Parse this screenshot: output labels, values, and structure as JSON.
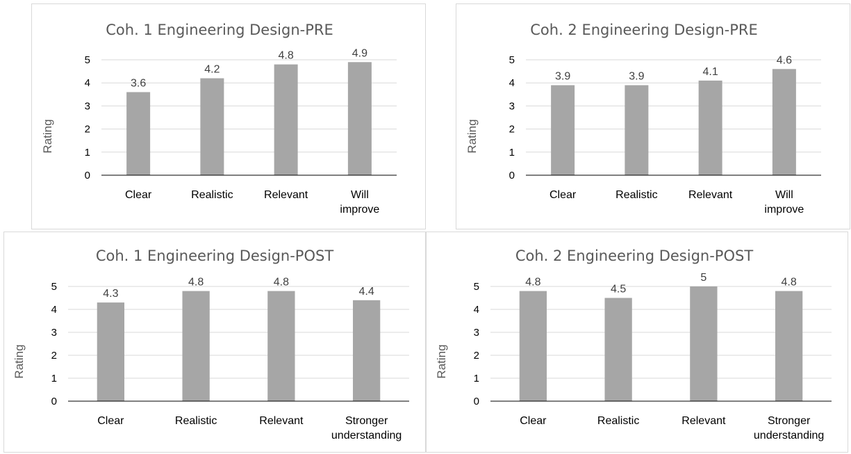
{
  "chart_data": [
    {
      "type": "bar",
      "title": "Coh. 1 Engineering Design-PRE",
      "ylabel": "Rating",
      "xlabel": "",
      "ylim": [
        0,
        5
      ],
      "yticks": [
        0,
        1,
        2,
        3,
        4,
        5
      ],
      "categories": [
        [
          "Clear"
        ],
        [
          "Realistic"
        ],
        [
          "Relevant"
        ],
        [
          "Will",
          "improve"
        ]
      ],
      "values": [
        3.6,
        4.2,
        4.8,
        4.9
      ],
      "value_labels": [
        "3.6",
        "4.2",
        "4.8",
        "4.9"
      ],
      "bar_color": "#a6a6a6",
      "grid": true,
      "legend": "none"
    },
    {
      "type": "bar",
      "title": "Coh. 2 Engineering Design-PRE",
      "ylabel": "Rating",
      "xlabel": "",
      "ylim": [
        0,
        5
      ],
      "yticks": [
        0,
        1,
        2,
        3,
        4,
        5
      ],
      "categories": [
        [
          "Clear"
        ],
        [
          "Realistic"
        ],
        [
          "Relevant"
        ],
        [
          "Will",
          "improve"
        ]
      ],
      "values": [
        3.9,
        3.9,
        4.1,
        4.6
      ],
      "value_labels": [
        "3.9",
        "3.9",
        "4.1",
        "4.6"
      ],
      "bar_color": "#a6a6a6",
      "grid": true,
      "legend": "none"
    },
    {
      "type": "bar",
      "title": "Coh. 1 Engineering Design-POST",
      "ylabel": "Rating",
      "xlabel": "",
      "ylim": [
        0,
        5
      ],
      "yticks": [
        0,
        1,
        2,
        3,
        4,
        5
      ],
      "categories": [
        [
          "Clear"
        ],
        [
          "Realistic"
        ],
        [
          "Relevant"
        ],
        [
          "Stronger",
          "understanding"
        ]
      ],
      "values": [
        4.3,
        4.8,
        4.8,
        4.4
      ],
      "value_labels": [
        "4.3",
        "4.8",
        "4.8",
        "4.4"
      ],
      "bar_color": "#a6a6a6",
      "grid": true,
      "legend": "none"
    },
    {
      "type": "bar",
      "title": "Coh. 2 Engineering Design-POST",
      "ylabel": "Rating",
      "xlabel": "",
      "ylim": [
        0,
        5
      ],
      "yticks": [
        0,
        1,
        2,
        3,
        4,
        5
      ],
      "categories": [
        [
          "Clear"
        ],
        [
          "Realistic"
        ],
        [
          "Relevant"
        ],
        [
          "Stronger",
          "understanding"
        ]
      ],
      "values": [
        4.8,
        4.5,
        5.0,
        4.8
      ],
      "value_labels": [
        "4.8",
        "4.5",
        "5",
        "4.8"
      ],
      "bar_color": "#a6a6a6",
      "grid": true,
      "legend": "none"
    }
  ]
}
